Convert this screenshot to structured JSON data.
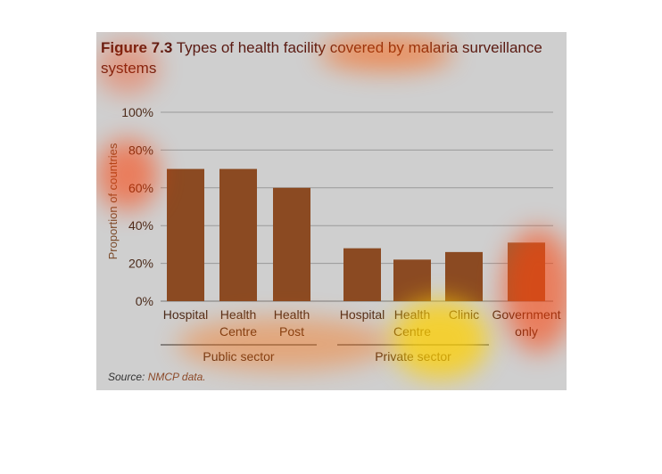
{
  "figure": {
    "title_prefix": "Figure 7.3",
    "title_text": "Types of health facility covered by malaria surveillance systems",
    "source_label": "Source:",
    "source_text": "NMCP data."
  },
  "chart_data": {
    "type": "bar",
    "title": "Figure 7.3 Types of health facility covered by malaria surveillance systems",
    "ylabel": "Proportion of countries",
    "xlabel": "",
    "ylim": [
      0,
      100
    ],
    "yticks": [
      0,
      20,
      40,
      60,
      80,
      100
    ],
    "ytick_labels": [
      "0%",
      "20%",
      "40%",
      "60%",
      "80%",
      "100%"
    ],
    "grid": true,
    "groups": [
      {
        "name": "Public sector",
        "categories": [
          "Hospital",
          "Health Centre",
          "Health Post"
        ],
        "values": [
          70,
          70,
          60
        ]
      },
      {
        "name": "Private sector",
        "categories": [
          "Hospital",
          "Health Centre",
          "Clinic"
        ],
        "values": [
          28,
          22,
          26
        ]
      },
      {
        "name": "",
        "categories": [
          "Government only"
        ],
        "values": [
          31
        ]
      }
    ],
    "colors": {
      "bar": "#8b4a22",
      "bar_light": "#a06038",
      "grid": "#9a9a9a",
      "axis_text": "#6a3a1a"
    }
  }
}
